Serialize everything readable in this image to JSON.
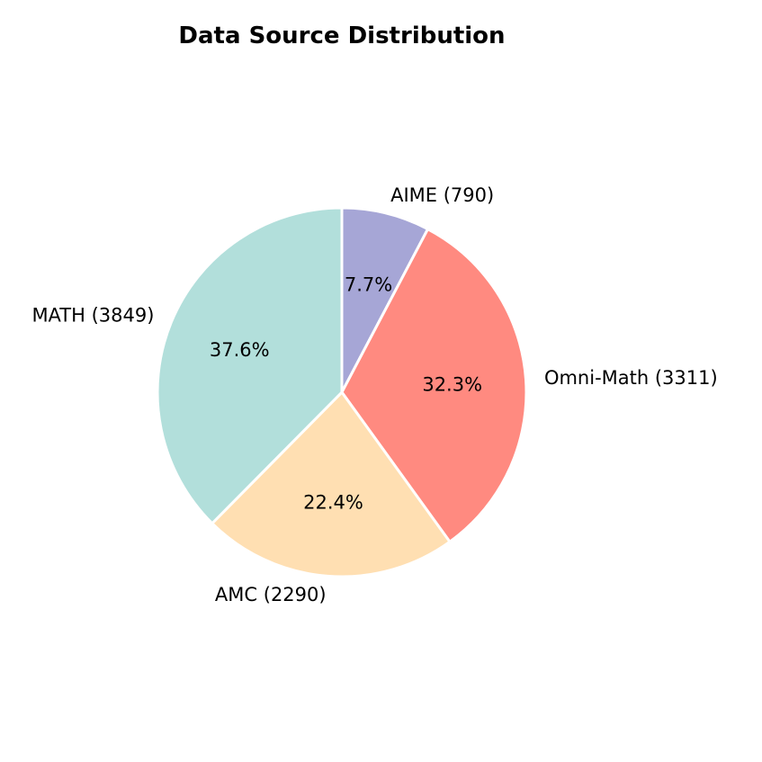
{
  "chart_data": {
    "type": "pie",
    "title": "Data Source Distribution",
    "start_angle_deg": 90,
    "direction": "clockwise",
    "slices": [
      {
        "label": "AIME (790)",
        "name": "AIME",
        "value": 790,
        "percent_label": "7.7%",
        "color": "#a6a6d6"
      },
      {
        "label": "Omni-Math (3311)",
        "name": "Omni-Math",
        "value": 3311,
        "percent_label": "32.3%",
        "color": "#ff8a80"
      },
      {
        "label": "AMC (2290)",
        "name": "AMC",
        "value": 2290,
        "percent_label": "22.4%",
        "color": "#ffdfb2"
      },
      {
        "label": "MATH (3849)",
        "name": "MATH",
        "value": 3849,
        "percent_label": "37.6%",
        "color": "#b2dfdb"
      }
    ]
  }
}
